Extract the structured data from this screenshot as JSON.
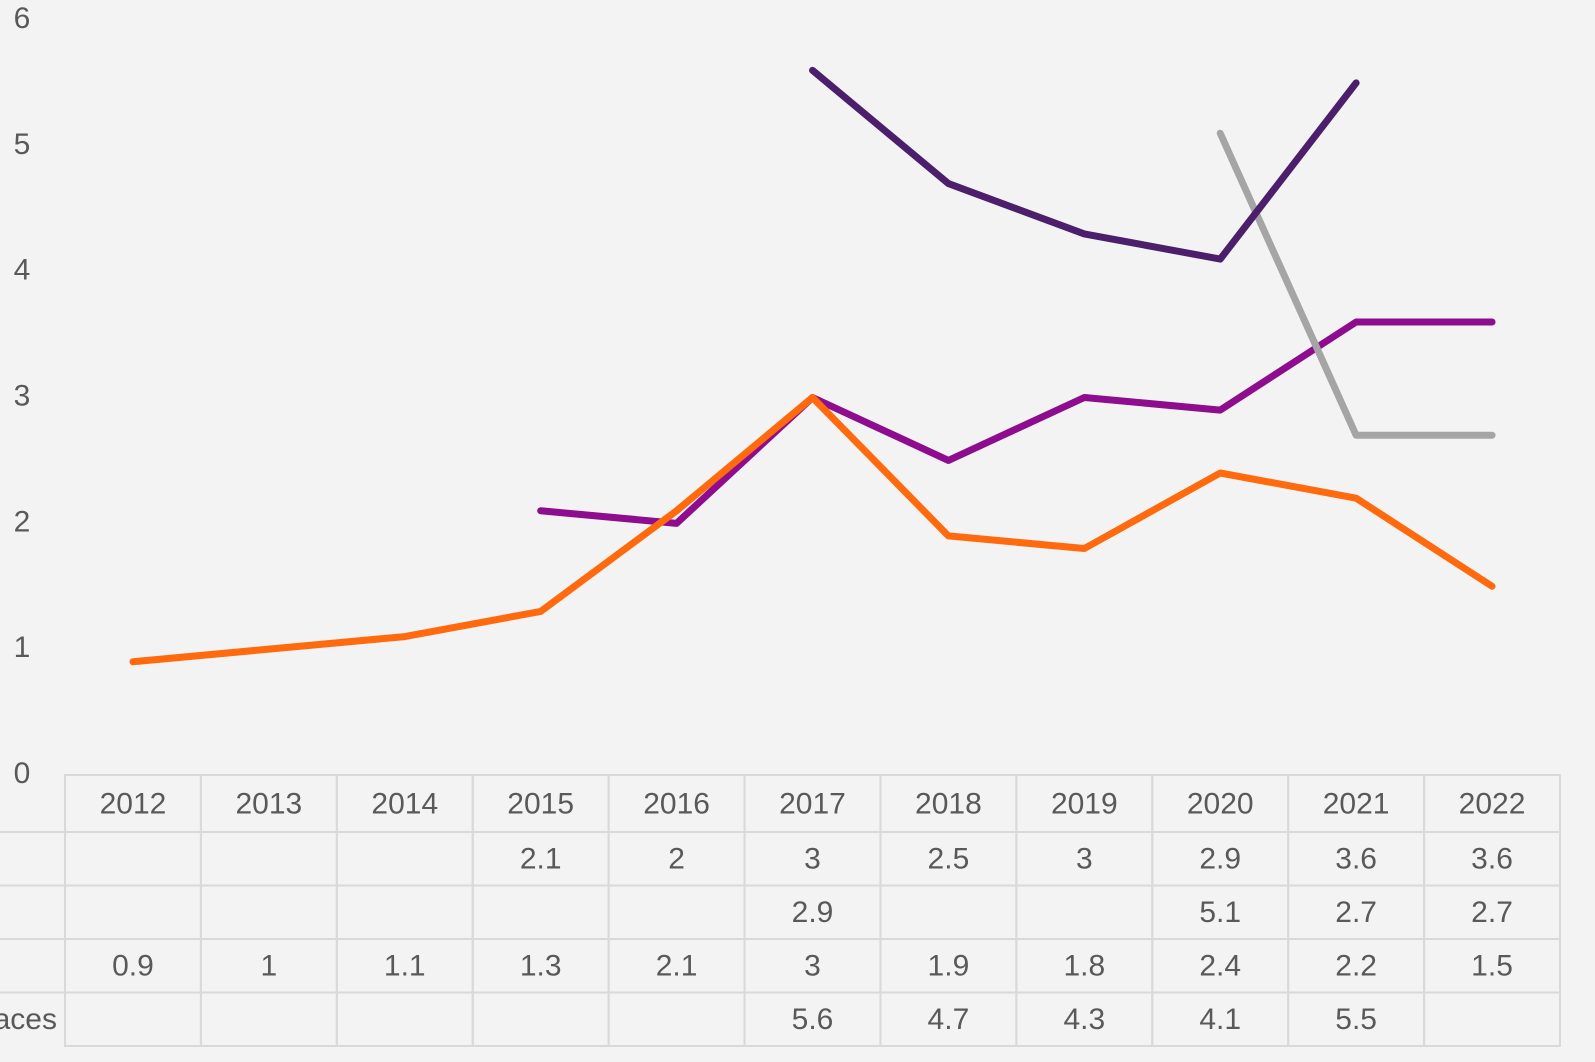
{
  "chart_data": {
    "type": "line",
    "categories": [
      "2012",
      "2013",
      "2014",
      "2015",
      "2016",
      "2017",
      "2018",
      "2019",
      "2020",
      "2021",
      "2022"
    ],
    "ylim": [
      0,
      6
    ],
    "yticks": [
      0,
      1,
      2,
      3,
      4,
      5,
      6
    ],
    "series": [
      {
        "color": "#8e0c8e",
        "values": [
          null,
          null,
          null,
          2.1,
          2,
          3,
          2.5,
          3,
          2.9,
          3.6,
          3.6
        ]
      },
      {
        "color": "#a5a5a5",
        "values": [
          null,
          null,
          null,
          null,
          null,
          2.9,
          null,
          null,
          5.1,
          2.7,
          2.7
        ]
      },
      {
        "color": "#ff6a0e",
        "values": [
          0.9,
          1,
          1.1,
          1.3,
          2.1,
          3,
          1.9,
          1.8,
          2.4,
          2.2,
          1.5
        ]
      },
      {
        "name": "aces",
        "color": "#4b1f6b",
        "values": [
          null,
          null,
          null,
          null,
          null,
          5.6,
          4.7,
          4.3,
          4.1,
          5.5,
          null
        ]
      }
    ]
  }
}
